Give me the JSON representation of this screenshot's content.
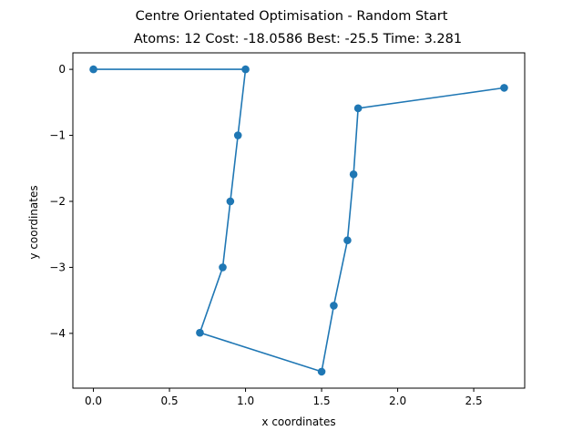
{
  "chart_data": {
    "type": "line",
    "title": "Centre Orientated Optimisation - Random Start",
    "subtitle": "Atoms: 12 Cost: -18.0586 Best: -25.5 Time: 3.281",
    "xlabel": "x coordinates",
    "ylabel": "y coordinates",
    "xlim": [
      -0.135,
      2.835
    ],
    "ylim": [
      -4.83,
      0.25
    ],
    "xticks": [
      0.0,
      0.5,
      1.0,
      1.5,
      2.0,
      2.5
    ],
    "xtick_labels": [
      "0.0",
      "0.5",
      "1.0",
      "1.5",
      "2.0",
      "2.5"
    ],
    "yticks": [
      0,
      -1,
      -2,
      -3,
      -4
    ],
    "ytick_labels": [
      "0",
      "−1",
      "−2",
      "−3",
      "−4"
    ],
    "grid": false,
    "series": [
      {
        "color": "#1f77b4",
        "marker": "circle",
        "x": [
          0.0,
          1.0,
          0.95,
          0.9,
          0.85,
          0.7,
          1.5,
          1.58,
          1.67,
          1.71,
          1.74,
          2.7
        ],
        "y": [
          0.0,
          0.0,
          -1.0,
          -2.0,
          -3.0,
          -3.99,
          -4.58,
          -3.58,
          -2.59,
          -1.59,
          -0.59,
          -0.28
        ]
      }
    ]
  }
}
